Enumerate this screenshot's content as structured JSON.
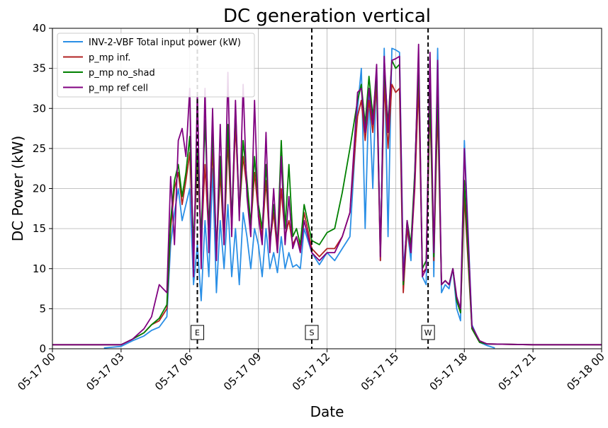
{
  "chart_data": {
    "type": "line",
    "title": "DC generation vertical",
    "xlabel": "Date",
    "ylabel": "DC Power (kW)",
    "xlim": [
      "05-17 00",
      "05-18 00"
    ],
    "ylim": [
      0,
      40
    ],
    "yticks": [
      0,
      5,
      10,
      15,
      20,
      25,
      30,
      35,
      40
    ],
    "xtick_labels": [
      "05-17 00",
      "05-17 03",
      "05-17 06",
      "05-17 09",
      "05-17 12",
      "05-17 15",
      "05-17 18",
      "05-17 21",
      "05-18 00"
    ],
    "grid": true,
    "legend_position": "top-left",
    "markers": [
      {
        "label": "E",
        "time": "05-17 06:20"
      },
      {
        "label": "S",
        "time": "05-17 11:20"
      },
      {
        "label": "W",
        "time": "05-17 16:25"
      }
    ],
    "series": [
      {
        "name": "INV-2-VBF Total input power (kW)",
        "color": "#2a8fe6",
        "x": [
          "05-17 02:15",
          "05-17 03:00",
          "05-17 03:30",
          "05-17 04:00",
          "05-17 04:20",
          "05-17 04:40",
          "05-17 05:00",
          "05-17 05:10",
          "05-17 05:20",
          "05-17 05:30",
          "05-17 05:40",
          "05-17 05:50",
          "05-17 06:00",
          "05-17 06:10",
          "05-17 06:20",
          "05-17 06:30",
          "05-17 06:40",
          "05-17 06:50",
          "05-17 07:00",
          "05-17 07:10",
          "05-17 07:20",
          "05-17 07:30",
          "05-17 07:40",
          "05-17 07:50",
          "05-17 08:00",
          "05-17 08:10",
          "05-17 08:20",
          "05-17 08:30",
          "05-17 08:40",
          "05-17 08:50",
          "05-17 09:00",
          "05-17 09:10",
          "05-17 09:20",
          "05-17 09:30",
          "05-17 09:40",
          "05-17 09:50",
          "05-17 10:00",
          "05-17 10:10",
          "05-17 10:20",
          "05-17 10:30",
          "05-17 10:40",
          "05-17 10:50",
          "05-17 11:00",
          "05-17 11:20",
          "05-17 11:40",
          "05-17 12:00",
          "05-17 12:20",
          "05-17 12:40",
          "05-17 13:00",
          "05-17 13:20",
          "05-17 13:30",
          "05-17 13:40",
          "05-17 13:50",
          "05-17 14:00",
          "05-17 14:10",
          "05-17 14:20",
          "05-17 14:30",
          "05-17 14:40",
          "05-17 14:50",
          "05-17 15:00",
          "05-17 15:10",
          "05-17 15:20",
          "05-17 15:30",
          "05-17 15:40",
          "05-17 15:50",
          "05-17 16:00",
          "05-17 16:10",
          "05-17 16:20",
          "05-17 16:30",
          "05-17 16:40",
          "05-17 16:50",
          "05-17 17:00",
          "05-17 17:10",
          "05-17 17:20",
          "05-17 17:30",
          "05-17 17:40",
          "05-17 17:50",
          "05-17 18:00",
          "05-17 18:20",
          "05-17 18:40",
          "05-17 19:00",
          "05-17 19:20"
        ],
        "y": [
          0.1,
          0.3,
          1.0,
          1.6,
          2.3,
          2.7,
          4.0,
          13.0,
          17.0,
          20.0,
          16.0,
          18.0,
          20.0,
          8.0,
          13.0,
          6.0,
          16.0,
          9.0,
          22.5,
          7.0,
          16.0,
          10.0,
          18.0,
          9.0,
          15.0,
          8.0,
          17.0,
          14.0,
          10.0,
          15.0,
          13.0,
          9.0,
          15.0,
          10.0,
          12.0,
          9.5,
          14.0,
          10.0,
          12.0,
          10.2,
          10.5,
          10.0,
          15.0,
          12.0,
          10.5,
          12.0,
          11.0,
          12.5,
          14.0,
          30.0,
          35.0,
          15.0,
          32.0,
          20.0,
          35.0,
          11.0,
          37.5,
          14.0,
          37.5,
          37.3,
          37.0,
          10.0,
          15.0,
          11.0,
          22.0,
          35.0,
          9.0,
          8.0,
          36.0,
          9.0,
          37.5,
          7.0,
          8.0,
          7.5,
          10.0,
          5.0,
          3.5,
          26.0,
          3.0,
          0.8,
          0.4,
          0.1
        ]
      },
      {
        "name": "p_mp inf.",
        "color": "#b22222",
        "x": [
          "05-17 00:00",
          "05-17 03:00",
          "05-17 03:30",
          "05-17 04:00",
          "05-17 04:20",
          "05-17 04:40",
          "05-17 05:00",
          "05-17 05:10",
          "05-17 05:20",
          "05-17 05:30",
          "05-17 05:40",
          "05-17 05:50",
          "05-17 06:00",
          "05-17 06:10",
          "05-17 06:20",
          "05-17 06:30",
          "05-17 06:40",
          "05-17 06:50",
          "05-17 07:00",
          "05-17 07:10",
          "05-17 07:20",
          "05-17 07:30",
          "05-17 07:40",
          "05-17 07:50",
          "05-17 08:00",
          "05-17 08:10",
          "05-17 08:20",
          "05-17 08:30",
          "05-17 08:40",
          "05-17 08:50",
          "05-17 09:00",
          "05-17 09:10",
          "05-17 09:20",
          "05-17 09:30",
          "05-17 09:40",
          "05-17 09:50",
          "05-17 10:00",
          "05-17 10:10",
          "05-17 10:20",
          "05-17 10:30",
          "05-17 10:40",
          "05-17 10:50",
          "05-17 11:00",
          "05-17 11:20",
          "05-17 11:40",
          "05-17 12:00",
          "05-17 12:20",
          "05-17 12:40",
          "05-17 13:00",
          "05-17 13:20",
          "05-17 13:30",
          "05-17 13:40",
          "05-17 13:50",
          "05-17 14:00",
          "05-17 14:10",
          "05-17 14:20",
          "05-17 14:30",
          "05-17 14:40",
          "05-17 14:50",
          "05-17 15:00",
          "05-17 15:10",
          "05-17 15:20",
          "05-17 15:30",
          "05-17 15:40",
          "05-17 15:50",
          "05-17 16:00",
          "05-17 16:10",
          "05-17 16:20",
          "05-17 16:30",
          "05-17 16:40",
          "05-17 16:50",
          "05-17 17:00",
          "05-17 17:10",
          "05-17 17:20",
          "05-17 17:30",
          "05-17 17:40",
          "05-17 17:50",
          "05-17 18:00",
          "05-17 18:20",
          "05-17 18:40",
          "05-17 19:00",
          "05-17 21:00",
          "05-18 00:00"
        ],
        "y": [
          0.5,
          0.5,
          1.2,
          2.0,
          3.0,
          3.5,
          5.0,
          15.0,
          20.0,
          22.0,
          18.0,
          21.0,
          24.5,
          12.0,
          24.0,
          13.0,
          23.0,
          14.0,
          25.0,
          12.0,
          22.0,
          13.0,
          26.0,
          15.0,
          28.0,
          17.0,
          24.0,
          20.0,
          15.0,
          22.0,
          17.0,
          14.0,
          21.0,
          13.0,
          17.0,
          12.0,
          20.0,
          14.0,
          16.0,
          13.0,
          14.0,
          12.5,
          17.0,
          12.5,
          11.5,
          12.5,
          12.5,
          14.0,
          17.0,
          29.0,
          31.0,
          26.0,
          31.0,
          27.0,
          33.0,
          11.0,
          33.0,
          25.0,
          33.0,
          32.0,
          32.5,
          7.0,
          15.0,
          12.0,
          20.0,
          33.0,
          9.5,
          10.0,
          30.5,
          11.0,
          30.0,
          8.0,
          8.5,
          8.0,
          10.0,
          6.0,
          4.5,
          19.0,
          2.5,
          0.8,
          0.6,
          0.5,
          0.5
        ]
      },
      {
        "name": "p_mp no_shad",
        "color": "#008000",
        "x": [
          "05-17 00:00",
          "05-17 03:00",
          "05-17 03:30",
          "05-17 04:00",
          "05-17 04:20",
          "05-17 04:40",
          "05-17 05:00",
          "05-17 05:10",
          "05-17 05:20",
          "05-17 05:30",
          "05-17 05:40",
          "05-17 05:50",
          "05-17 06:00",
          "05-17 06:10",
          "05-17 06:20",
          "05-17 06:30",
          "05-17 06:40",
          "05-17 06:50",
          "05-17 07:00",
          "05-17 07:10",
          "05-17 07:20",
          "05-17 07:30",
          "05-17 07:40",
          "05-17 07:50",
          "05-17 08:00",
          "05-17 08:10",
          "05-17 08:20",
          "05-17 08:30",
          "05-17 08:40",
          "05-17 08:50",
          "05-17 09:00",
          "05-17 09:10",
          "05-17 09:20",
          "05-17 09:30",
          "05-17 09:40",
          "05-17 09:50",
          "05-17 10:00",
          "05-17 10:10",
          "05-17 10:20",
          "05-17 10:30",
          "05-17 10:40",
          "05-17 10:50",
          "05-17 11:00",
          "05-17 11:20",
          "05-17 11:40",
          "05-17 12:00",
          "05-17 12:20",
          "05-17 12:40",
          "05-17 13:00",
          "05-17 13:20",
          "05-17 13:30",
          "05-17 13:40",
          "05-17 13:50",
          "05-17 14:00",
          "05-17 14:10",
          "05-17 14:20",
          "05-17 14:30",
          "05-17 14:40",
          "05-17 14:50",
          "05-17 15:00",
          "05-17 15:10",
          "05-17 15:20",
          "05-17 15:30",
          "05-17 15:40",
          "05-17 15:50",
          "05-17 16:00",
          "05-17 16:10",
          "05-17 16:20",
          "05-17 16:30",
          "05-17 16:40",
          "05-17 16:50",
          "05-17 17:00",
          "05-17 17:10",
          "05-17 17:20",
          "05-17 17:30",
          "05-17 17:40",
          "05-17 17:50",
          "05-17 18:00",
          "05-17 18:20",
          "05-17 18:40",
          "05-17 19:00",
          "05-17 21:00",
          "05-18 00:00"
        ],
        "y": [
          0.5,
          0.5,
          1.2,
          2.0,
          3.0,
          3.8,
          5.5,
          16.0,
          21.0,
          23.0,
          19.0,
          22.0,
          26.5,
          13.0,
          25.0,
          14.0,
          28.5,
          15.0,
          27.0,
          12.0,
          24.0,
          14.0,
          28.0,
          16.0,
          30.0,
          17.0,
          26.0,
          21.0,
          15.5,
          24.0,
          18.0,
          15.0,
          23.0,
          13.5,
          18.0,
          13.0,
          26.0,
          15.0,
          23.0,
          14.0,
          15.0,
          13.0,
          18.0,
          13.5,
          13.0,
          14.5,
          15.0,
          19.5,
          25.0,
          31.0,
          33.0,
          28.0,
          34.0,
          29.0,
          34.0,
          12.0,
          35.0,
          28.0,
          36.0,
          35.0,
          35.5,
          8.0,
          16.0,
          13.0,
          22.0,
          36.0,
          10.0,
          11.0,
          32.0,
          11.5,
          32.5,
          8.0,
          8.5,
          8.0,
          10.0,
          6.0,
          4.5,
          21.0,
          2.5,
          0.8,
          0.6,
          0.5,
          0.5
        ]
      },
      {
        "name": "p_mp ref cell",
        "color": "#800080",
        "x": [
          "05-17 00:00",
          "05-17 03:00",
          "05-17 03:30",
          "05-17 04:00",
          "05-17 04:20",
          "05-17 04:40",
          "05-17 05:00",
          "05-17 05:10",
          "05-17 05:20",
          "05-17 05:30",
          "05-17 05:40",
          "05-17 05:50",
          "05-17 06:00",
          "05-17 06:10",
          "05-17 06:20",
          "05-17 06:30",
          "05-17 06:40",
          "05-17 06:50",
          "05-17 07:00",
          "05-17 07:10",
          "05-17 07:20",
          "05-17 07:30",
          "05-17 07:40",
          "05-17 07:50",
          "05-17 08:00",
          "05-17 08:10",
          "05-17 08:20",
          "05-17 08:30",
          "05-17 08:40",
          "05-17 08:50",
          "05-17 09:00",
          "05-17 09:10",
          "05-17 09:20",
          "05-17 09:30",
          "05-17 09:40",
          "05-17 09:50",
          "05-17 10:00",
          "05-17 10:10",
          "05-17 10:20",
          "05-17 10:30",
          "05-17 10:40",
          "05-17 10:50",
          "05-17 11:00",
          "05-17 11:20",
          "05-17 11:40",
          "05-17 12:00",
          "05-17 12:20",
          "05-17 12:40",
          "05-17 13:00",
          "05-17 13:20",
          "05-17 13:30",
          "05-17 13:40",
          "05-17 13:50",
          "05-17 14:00",
          "05-17 14:10",
          "05-17 14:20",
          "05-17 14:30",
          "05-17 14:40",
          "05-17 14:50",
          "05-17 15:00",
          "05-17 15:10",
          "05-17 15:20",
          "05-17 15:30",
          "05-17 15:40",
          "05-17 15:50",
          "05-17 16:00",
          "05-17 16:10",
          "05-17 16:20",
          "05-17 16:30",
          "05-17 16:40",
          "05-17 16:50",
          "05-17 17:00",
          "05-17 17:10",
          "05-17 17:20",
          "05-17 17:30",
          "05-17 17:40",
          "05-17 17:50",
          "05-17 18:00",
          "05-17 18:20",
          "05-17 18:40",
          "05-17 19:00",
          "05-17 21:00",
          "05-18 00:00"
        ],
        "y": [
          0.5,
          0.5,
          1.2,
          2.5,
          4.0,
          8.0,
          7.0,
          21.5,
          13.0,
          26.0,
          27.5,
          24.0,
          32.5,
          9.0,
          32.0,
          10.0,
          32.5,
          12.0,
          30.0,
          11.0,
          28.0,
          13.0,
          34.5,
          14.0,
          31.0,
          16.0,
          33.0,
          19.0,
          14.0,
          31.0,
          16.5,
          13.0,
          27.0,
          12.0,
          20.0,
          12.0,
          24.0,
          13.0,
          19.0,
          12.5,
          14.0,
          12.0,
          16.0,
          12.0,
          11.0,
          12.0,
          12.0,
          14.0,
          17.0,
          32.0,
          32.5,
          27.0,
          32.5,
          28.0,
          35.5,
          11.5,
          36.5,
          27.0,
          36.0,
          36.2,
          36.5,
          8.5,
          16.0,
          12.0,
          21.0,
          38.0,
          9.0,
          10.0,
          37.0,
          12.0,
          36.0,
          8.0,
          8.5,
          8.0,
          10.0,
          6.5,
          5.0,
          25.0,
          2.8,
          1.0,
          0.6,
          0.5,
          0.5
        ]
      }
    ]
  }
}
